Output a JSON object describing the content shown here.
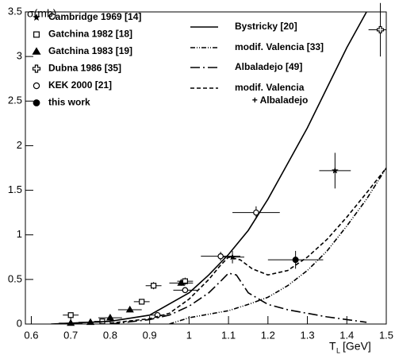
{
  "chart_data": {
    "type": "scatter",
    "y_label": "σ(mb)",
    "x_label": {
      "main": "T",
      "sub": "L",
      "unit": "[GeV]"
    },
    "xlim": [
      0.585,
      1.5
    ],
    "ylim": [
      0,
      3.5
    ],
    "xticks": [
      0.6,
      0.7,
      0.8,
      0.9,
      1,
      1.1,
      1.2,
      1.3,
      1.4,
      1.5
    ],
    "yticks": [
      0,
      0.5,
      1,
      1.5,
      2,
      2.5,
      3,
      3.5
    ],
    "series": [
      {
        "name": "Cambridge 1969 [14]",
        "marker": "star",
        "x": [
          1.37,
          1.11
        ],
        "values": [
          1.72,
          0.75
        ],
        "xerr": [
          0.04,
          0.03
        ],
        "yerr": [
          0.2,
          0.07
        ]
      },
      {
        "name": "Gatchina 1982 [18]",
        "marker": "open-square",
        "x": [
          0.7,
          0.78,
          0.88,
          0.91,
          0.99
        ],
        "values": [
          0.1,
          0.03,
          0.25,
          0.43,
          0.48
        ],
        "xerr": [
          0.02,
          0.02,
          0.02,
          0.02,
          0.02
        ],
        "yerr": [
          0.03,
          0.01,
          0.03,
          0.04,
          0.04
        ]
      },
      {
        "name": "Gatchina 1983 [19]",
        "marker": "triangle",
        "x": [
          0.7,
          0.75,
          0.8,
          0.85,
          0.98
        ],
        "values": [
          0.01,
          0.02,
          0.07,
          0.16,
          0.46
        ],
        "xerr": [
          0.03,
          0.03,
          0.03,
          0.03,
          0.03
        ],
        "yerr": [
          0.01,
          0.01,
          0.01,
          0.02,
          0.03
        ]
      },
      {
        "name": "Dubna 1986 [35]",
        "marker": "open-cross",
        "x": [
          1.485
        ],
        "values": [
          3.3
        ],
        "xerr": [
          0.03
        ],
        "yerr": [
          0.3
        ]
      },
      {
        "name": "KEK 2000 [21]",
        "marker": "open-circle",
        "x": [
          0.92,
          0.99,
          1.08,
          1.17
        ],
        "values": [
          0.1,
          0.38,
          0.76,
          1.25
        ],
        "xerr": [
          0.02,
          0.03,
          0.05,
          0.06
        ],
        "yerr": [
          0.02,
          0.03,
          0.05,
          0.07
        ]
      },
      {
        "name": "this work",
        "marker": "circle",
        "x": [
          1.27
        ],
        "values": [
          0.72
        ],
        "xerr": [
          0.07
        ],
        "yerr": [
          0.1
        ]
      },
      {
        "name": "Bystricky [20]",
        "dash": "solid",
        "x": [
          0.65,
          0.8,
          0.9,
          1,
          1.05,
          1.1,
          1.15,
          1.2,
          1.25,
          1.3,
          1.35,
          1.4,
          1.45
        ],
        "values": [
          0,
          0.03,
          0.1,
          0.35,
          0.55,
          0.78,
          1.05,
          1.4,
          1.8,
          2.2,
          2.65,
          3.1,
          3.5
        ]
      },
      {
        "name": "modif. Valencia [33]",
        "dash": "dashdotdot",
        "x": [
          0.95,
          1,
          1.05,
          1.1,
          1.15,
          1.2,
          1.25,
          1.3,
          1.35,
          1.4,
          1.45,
          1.5
        ],
        "values": [
          0,
          0.07,
          0.11,
          0.15,
          0.22,
          0.3,
          0.43,
          0.6,
          0.82,
          1.1,
          1.4,
          1.75
        ]
      },
      {
        "name": "Albaladejo [49]",
        "dash": "longdashdot",
        "x": [
          0.8,
          0.9,
          0.95,
          1,
          1.05,
          1.08,
          1.1,
          1.12,
          1.15,
          1.2,
          1.25,
          1.3,
          1.35,
          1.4,
          1.45
        ],
        "values": [
          0,
          0.05,
          0.1,
          0.2,
          0.35,
          0.48,
          0.57,
          0.55,
          0.35,
          0.22,
          0.16,
          0.12,
          0.08,
          0.05,
          0.02
        ]
      },
      {
        "name": [
          "modif. Valencia",
          "+ Albaladejo"
        ],
        "dash": "dashed",
        "x": [
          0.8,
          0.9,
          0.95,
          1,
          1.05,
          1.08,
          1.1,
          1.13,
          1.16,
          1.2,
          1.25,
          1.3,
          1.35,
          1.4,
          1.45,
          1.5
        ],
        "values": [
          0.01,
          0.06,
          0.12,
          0.28,
          0.5,
          0.66,
          0.75,
          0.72,
          0.62,
          0.55,
          0.6,
          0.75,
          0.95,
          1.2,
          1.47,
          1.75
        ]
      }
    ]
  }
}
